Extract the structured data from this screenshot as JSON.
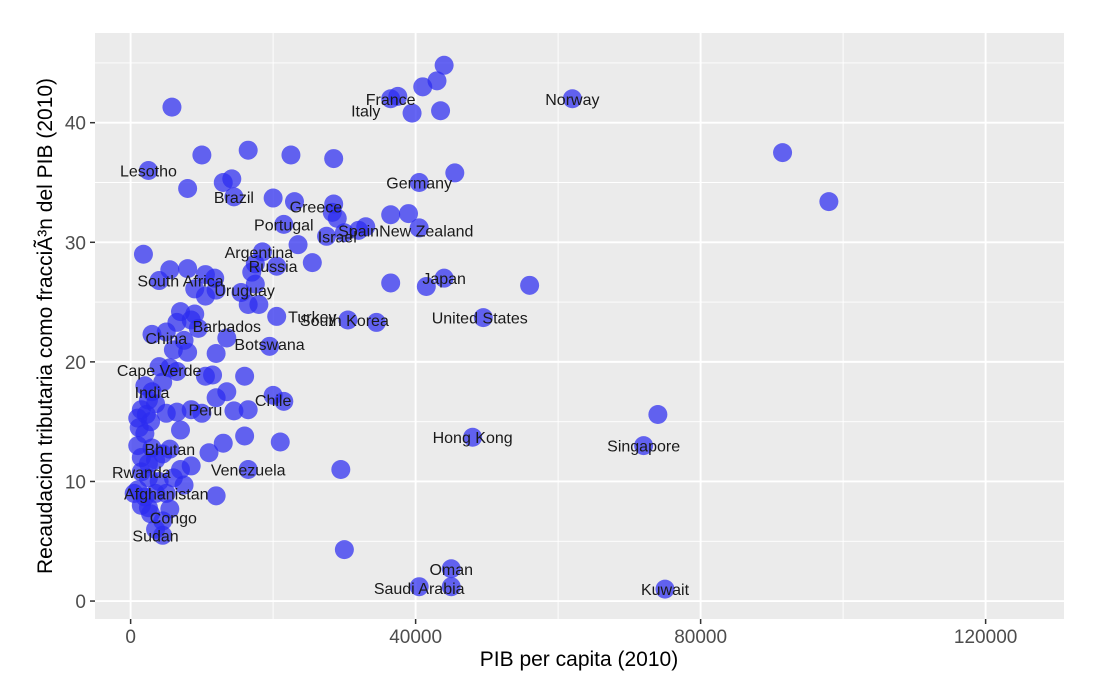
{
  "chart_data": {
    "type": "scatter",
    "title": "",
    "xlabel": "PIB per capita (2010)",
    "ylabel": "Recaudacion tributaria como fracciÃ³n del PIB (2010)",
    "xlim": [
      -5000,
      131000
    ],
    "ylim": [
      -1.5,
      47.5
    ],
    "x_ticks": [
      0,
      40000,
      80000,
      120000
    ],
    "y_ticks": [
      0,
      10,
      20,
      30,
      40
    ],
    "x_tick_labels": [
      "0",
      "40000",
      "80000",
      "120000"
    ],
    "y_tick_labels": [
      "0",
      "10",
      "20",
      "30",
      "40"
    ],
    "grid": true,
    "colors": {
      "panel": "#ebebeb",
      "grid_major": "#ffffff",
      "point": "#2b2bf0"
    },
    "labeled_points": [
      {
        "label": "Norway",
        "x": 62000,
        "y": 42.0
      },
      {
        "label": "France",
        "x": 36500,
        "y": 42.0
      },
      {
        "label": "Italy",
        "x": 33000,
        "y": 41.0
      },
      {
        "label": "Lesotho",
        "x": 2500,
        "y": 36.0
      },
      {
        "label": "Germany",
        "x": 40500,
        "y": 35.0
      },
      {
        "label": "Brazil",
        "x": 14500,
        "y": 33.8
      },
      {
        "label": "Greece",
        "x": 26000,
        "y": 33.0
      },
      {
        "label": "Spain",
        "x": 32000,
        "y": 31.0
      },
      {
        "label": "Portugal",
        "x": 21500,
        "y": 31.5
      },
      {
        "label": "New Zealand",
        "x": 41500,
        "y": 31.0
      },
      {
        "label": "Israel",
        "x": 29000,
        "y": 30.5
      },
      {
        "label": "Argentina",
        "x": 18000,
        "y": 29.2
      },
      {
        "label": "Russia",
        "x": 20000,
        "y": 28.0
      },
      {
        "label": "Japan",
        "x": 44000,
        "y": 27.0
      },
      {
        "label": "South Africa",
        "x": 7000,
        "y": 26.8
      },
      {
        "label": "Uruguay",
        "x": 16000,
        "y": 26.0
      },
      {
        "label": "United States",
        "x": 49000,
        "y": 23.7
      },
      {
        "label": "Turkey",
        "x": 25500,
        "y": 23.8
      },
      {
        "label": "South Korea",
        "x": 30000,
        "y": 23.5
      },
      {
        "label": "Barbados",
        "x": 13500,
        "y": 23.0
      },
      {
        "label": "China",
        "x": 5000,
        "y": 22.0
      },
      {
        "label": "Botswana",
        "x": 19500,
        "y": 21.5
      },
      {
        "label": "Cape Verde",
        "x": 4000,
        "y": 19.3
      },
      {
        "label": "India",
        "x": 3000,
        "y": 17.5
      },
      {
        "label": "Chile",
        "x": 20000,
        "y": 16.8
      },
      {
        "label": "Peru",
        "x": 10500,
        "y": 16.0
      },
      {
        "label": "Hong Kong",
        "x": 48000,
        "y": 13.7
      },
      {
        "label": "Singapore",
        "x": 72000,
        "y": 13.0
      },
      {
        "label": "Bhutan",
        "x": 5500,
        "y": 12.7
      },
      {
        "label": "Venezuela",
        "x": 16500,
        "y": 11.0
      },
      {
        "label": "Rwanda",
        "x": 1500,
        "y": 10.8
      },
      {
        "label": "Afghanistan",
        "x": 5000,
        "y": 9.0
      },
      {
        "label": "Congo",
        "x": 6000,
        "y": 7.0
      },
      {
        "label": "Sudan",
        "x": 3500,
        "y": 5.5
      },
      {
        "label": "Oman",
        "x": 45000,
        "y": 2.7
      },
      {
        "label": "Kuwait",
        "x": 75000,
        "y": 1.0
      },
      {
        "label": "Saudi Arabia",
        "x": 40500,
        "y": 1.1
      }
    ],
    "points": [
      {
        "x": 62000,
        "y": 42.0
      },
      {
        "x": 44000,
        "y": 44.8
      },
      {
        "x": 36500,
        "y": 42.0
      },
      {
        "x": 37500,
        "y": 42.2
      },
      {
        "x": 41000,
        "y": 43.0
      },
      {
        "x": 43000,
        "y": 43.5
      },
      {
        "x": 5800,
        "y": 41.3
      },
      {
        "x": 39500,
        "y": 40.8
      },
      {
        "x": 43500,
        "y": 41.0
      },
      {
        "x": 91500,
        "y": 37.5
      },
      {
        "x": 98000,
        "y": 33.4
      },
      {
        "x": 10000,
        "y": 37.3
      },
      {
        "x": 16500,
        "y": 37.7
      },
      {
        "x": 22500,
        "y": 37.3
      },
      {
        "x": 28500,
        "y": 37.0
      },
      {
        "x": 2500,
        "y": 36.0
      },
      {
        "x": 45500,
        "y": 35.8
      },
      {
        "x": 40500,
        "y": 35.0
      },
      {
        "x": 8000,
        "y": 34.5
      },
      {
        "x": 13000,
        "y": 35.0
      },
      {
        "x": 14200,
        "y": 35.3
      },
      {
        "x": 14500,
        "y": 33.8
      },
      {
        "x": 20000,
        "y": 33.7
      },
      {
        "x": 23000,
        "y": 33.4
      },
      {
        "x": 28500,
        "y": 33.2
      },
      {
        "x": 28300,
        "y": 32.5
      },
      {
        "x": 29000,
        "y": 32.0
      },
      {
        "x": 32000,
        "y": 31.0
      },
      {
        "x": 33000,
        "y": 31.3
      },
      {
        "x": 36500,
        "y": 32.3
      },
      {
        "x": 39000,
        "y": 32.4
      },
      {
        "x": 40500,
        "y": 31.2
      },
      {
        "x": 30000,
        "y": 30.8
      },
      {
        "x": 27500,
        "y": 30.5
      },
      {
        "x": 21500,
        "y": 31.5
      },
      {
        "x": 23500,
        "y": 29.8
      },
      {
        "x": 1800,
        "y": 29.0
      },
      {
        "x": 18500,
        "y": 29.2
      },
      {
        "x": 20500,
        "y": 28.0
      },
      {
        "x": 17500,
        "y": 28.2
      },
      {
        "x": 17000,
        "y": 27.5
      },
      {
        "x": 25500,
        "y": 28.3
      },
      {
        "x": 5500,
        "y": 27.7
      },
      {
        "x": 8000,
        "y": 27.8
      },
      {
        "x": 10500,
        "y": 27.3
      },
      {
        "x": 11800,
        "y": 27.0
      },
      {
        "x": 4000,
        "y": 26.8
      },
      {
        "x": 17500,
        "y": 26.5
      },
      {
        "x": 44000,
        "y": 27.0
      },
      {
        "x": 36500,
        "y": 26.6
      },
      {
        "x": 41500,
        "y": 26.3
      },
      {
        "x": 56000,
        "y": 26.4
      },
      {
        "x": 9000,
        "y": 26.1
      },
      {
        "x": 10500,
        "y": 25.5
      },
      {
        "x": 12000,
        "y": 26.0
      },
      {
        "x": 15500,
        "y": 25.8
      },
      {
        "x": 16500,
        "y": 24.8
      },
      {
        "x": 18000,
        "y": 24.8
      },
      {
        "x": 49500,
        "y": 23.7
      },
      {
        "x": 30500,
        "y": 23.5
      },
      {
        "x": 34500,
        "y": 23.3
      },
      {
        "x": 20500,
        "y": 23.8
      },
      {
        "x": 7000,
        "y": 24.2
      },
      {
        "x": 9000,
        "y": 24.0
      },
      {
        "x": 6500,
        "y": 23.3
      },
      {
        "x": 8500,
        "y": 23.5
      },
      {
        "x": 9500,
        "y": 22.8
      },
      {
        "x": 5000,
        "y": 22.5
      },
      {
        "x": 3000,
        "y": 22.3
      },
      {
        "x": 13500,
        "y": 22.0
      },
      {
        "x": 7500,
        "y": 21.8
      },
      {
        "x": 6000,
        "y": 21.0
      },
      {
        "x": 8000,
        "y": 20.8
      },
      {
        "x": 12000,
        "y": 20.7
      },
      {
        "x": 19500,
        "y": 21.3
      },
      {
        "x": 4000,
        "y": 19.6
      },
      {
        "x": 5500,
        "y": 19.5
      },
      {
        "x": 6500,
        "y": 19.2
      },
      {
        "x": 4500,
        "y": 18.3
      },
      {
        "x": 2000,
        "y": 18.0
      },
      {
        "x": 3000,
        "y": 17.5
      },
      {
        "x": 10500,
        "y": 18.8
      },
      {
        "x": 11500,
        "y": 18.9
      },
      {
        "x": 16000,
        "y": 18.8
      },
      {
        "x": 2500,
        "y": 16.8
      },
      {
        "x": 3500,
        "y": 16.5
      },
      {
        "x": 12000,
        "y": 17.0
      },
      {
        "x": 13500,
        "y": 17.5
      },
      {
        "x": 20000,
        "y": 17.2
      },
      {
        "x": 21500,
        "y": 16.7
      },
      {
        "x": 1500,
        "y": 16.0
      },
      {
        "x": 2200,
        "y": 15.6
      },
      {
        "x": 5000,
        "y": 15.7
      },
      {
        "x": 6500,
        "y": 15.8
      },
      {
        "x": 8500,
        "y": 16.0
      },
      {
        "x": 10000,
        "y": 15.7
      },
      {
        "x": 14500,
        "y": 15.9
      },
      {
        "x": 16500,
        "y": 16.0
      },
      {
        "x": 1000,
        "y": 15.3
      },
      {
        "x": 2800,
        "y": 15.0
      },
      {
        "x": 1200,
        "y": 14.5
      },
      {
        "x": 2000,
        "y": 14.0
      },
      {
        "x": 7000,
        "y": 14.3
      },
      {
        "x": 16000,
        "y": 13.8
      },
      {
        "x": 74000,
        "y": 15.6
      },
      {
        "x": 48000,
        "y": 13.7
      },
      {
        "x": 72000,
        "y": 13.0
      },
      {
        "x": 1000,
        "y": 13.0
      },
      {
        "x": 3000,
        "y": 12.8
      },
      {
        "x": 5500,
        "y": 12.7
      },
      {
        "x": 4500,
        "y": 12.3
      },
      {
        "x": 13000,
        "y": 13.2
      },
      {
        "x": 21000,
        "y": 13.3
      },
      {
        "x": 1500,
        "y": 12.0
      },
      {
        "x": 2500,
        "y": 11.5
      },
      {
        "x": 3500,
        "y": 11.8
      },
      {
        "x": 8500,
        "y": 11.3
      },
      {
        "x": 11000,
        "y": 12.4
      },
      {
        "x": 7000,
        "y": 11.0
      },
      {
        "x": 16500,
        "y": 11.0
      },
      {
        "x": 29500,
        "y": 11.0
      },
      {
        "x": 1500,
        "y": 10.8
      },
      {
        "x": 2500,
        "y": 10.3
      },
      {
        "x": 4000,
        "y": 10.0
      },
      {
        "x": 6000,
        "y": 10.3
      },
      {
        "x": 7500,
        "y": 9.7
      },
      {
        "x": 1000,
        "y": 9.3
      },
      {
        "x": 500,
        "y": 9.0
      },
      {
        "x": 2000,
        "y": 8.7
      },
      {
        "x": 3500,
        "y": 9.0
      },
      {
        "x": 5000,
        "y": 9.0
      },
      {
        "x": 12000,
        "y": 8.8
      },
      {
        "x": 1500,
        "y": 8.0
      },
      {
        "x": 2500,
        "y": 7.8
      },
      {
        "x": 5500,
        "y": 7.7
      },
      {
        "x": 2800,
        "y": 7.3
      },
      {
        "x": 4500,
        "y": 6.7
      },
      {
        "x": 3500,
        "y": 6.0
      },
      {
        "x": 4500,
        "y": 5.5
      },
      {
        "x": 30000,
        "y": 4.3
      },
      {
        "x": 45000,
        "y": 2.7
      },
      {
        "x": 40500,
        "y": 1.2
      },
      {
        "x": 45000,
        "y": 1.2
      },
      {
        "x": 75000,
        "y": 1.0
      }
    ]
  }
}
